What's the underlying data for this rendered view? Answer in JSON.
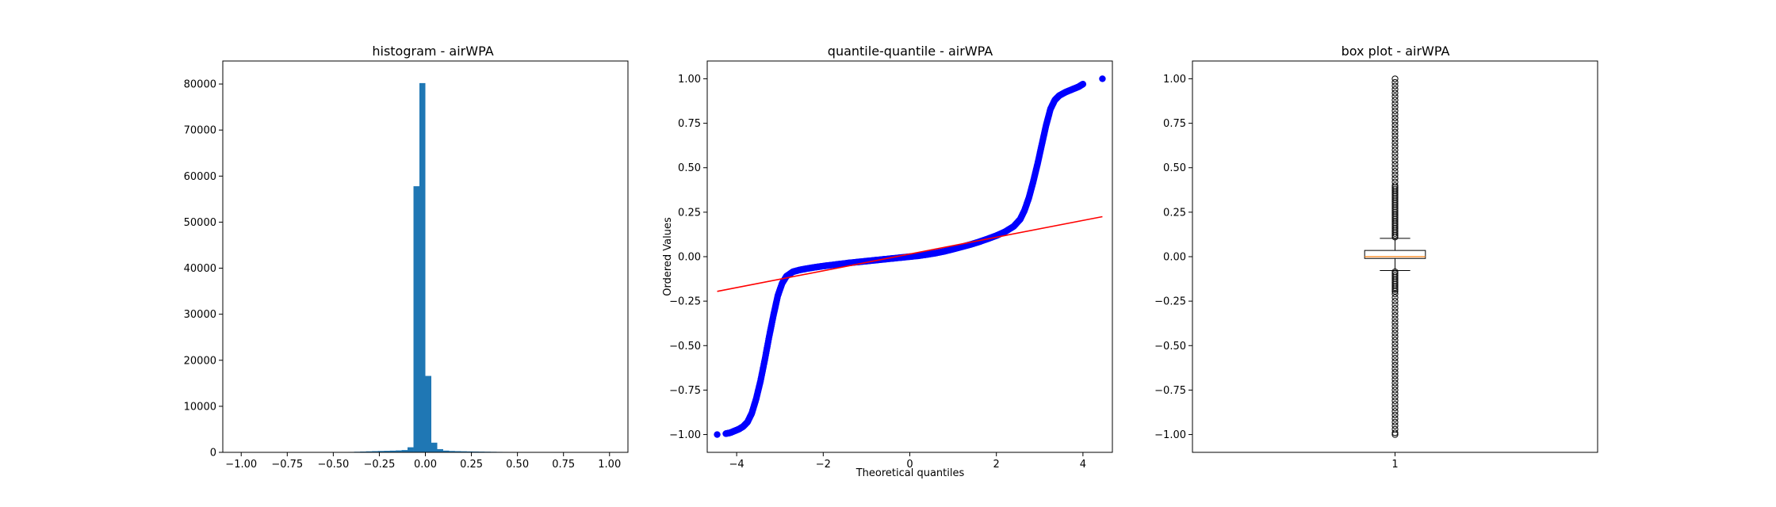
{
  "chart_data": [
    {
      "type": "bar",
      "title": "histogram - airWPA",
      "xlabel": "",
      "ylabel": "",
      "xlim": [
        -1.1,
        1.1
      ],
      "ylim": [
        0,
        85000
      ],
      "xticks": [
        -1.0,
        -0.75,
        -0.5,
        -0.25,
        0.0,
        0.25,
        0.5,
        0.75,
        1.0
      ],
      "xtick_labels": [
        "−1.00",
        "−0.75",
        "−0.50",
        "−0.25",
        "0.00",
        "0.25",
        "0.50",
        "0.75",
        "1.00"
      ],
      "yticks": [
        0,
        10000,
        20000,
        30000,
        40000,
        50000,
        60000,
        70000,
        80000
      ],
      "ytick_labels": [
        "0",
        "10000",
        "20000",
        "30000",
        "40000",
        "50000",
        "60000",
        "70000",
        "80000"
      ],
      "bin_edges": [
        -1.0,
        -0.9677,
        -0.9355,
        -0.9032,
        -0.871,
        -0.8387,
        -0.8065,
        -0.7742,
        -0.7419,
        -0.7097,
        -0.6774,
        -0.6452,
        -0.6129,
        -0.5806,
        -0.5484,
        -0.5161,
        -0.4839,
        -0.4516,
        -0.4194,
        -0.3871,
        -0.3548,
        -0.3226,
        -0.2903,
        -0.2581,
        -0.2258,
        -0.1935,
        -0.1613,
        -0.129,
        -0.0968,
        -0.0645,
        -0.0323,
        0.0,
        0.0323,
        0.0645,
        0.0968,
        0.129,
        0.1613,
        0.1935,
        0.2258,
        0.2581,
        0.2903,
        0.3226,
        0.3548,
        0.3871,
        0.4194,
        0.4516,
        0.4839,
        0.5161,
        0.5484,
        0.5806,
        0.6129,
        0.6452,
        0.6774,
        0.7097,
        0.7419,
        0.7742,
        0.8065,
        0.8387,
        0.871,
        0.9032,
        0.9355
      ],
      "values": [
        5,
        5,
        5,
        5,
        5,
        5,
        5,
        5,
        5,
        5,
        5,
        5,
        5,
        5,
        10,
        20,
        30,
        60,
        90,
        130,
        170,
        220,
        260,
        300,
        330,
        370,
        420,
        500,
        1100,
        57800,
        80200,
        16600,
        2100,
        700,
        380,
        300,
        260,
        230,
        200,
        180,
        160,
        140,
        120,
        100,
        90,
        80,
        70,
        60,
        55,
        50,
        45,
        40,
        35,
        30,
        25,
        20,
        15,
        10,
        8,
        5
      ],
      "color": "#1f77b4"
    },
    {
      "type": "scatter",
      "title": "quantile-quantile - airWPA",
      "xlabel": "Theoretical quantiles",
      "ylabel": "Ordered Values",
      "xlim": [
        -4.68,
        4.68
      ],
      "ylim": [
        -1.1,
        1.1
      ],
      "xticks": [
        -4,
        -2,
        0,
        2,
        4
      ],
      "xtick_labels": [
        "−4",
        "−2",
        "0",
        "2",
        "4"
      ],
      "yticks": [
        -1.0,
        -0.75,
        -0.5,
        -0.25,
        0.0,
        0.25,
        0.5,
        0.75,
        1.0
      ],
      "ytick_labels": [
        "−1.00",
        "−0.75",
        "−0.50",
        "−0.25",
        "0.00",
        "0.25",
        "0.50",
        "0.75",
        "1.00"
      ],
      "points": [
        [
          -4.45,
          -1.0
        ],
        [
          -4.25,
          -0.995
        ],
        [
          -4.15,
          -0.99
        ],
        [
          -4.05,
          -0.98
        ],
        [
          -3.95,
          -0.97
        ],
        [
          -3.85,
          -0.955
        ],
        [
          -3.75,
          -0.93
        ],
        [
          -3.65,
          -0.88
        ],
        [
          -3.55,
          -0.8
        ],
        [
          -3.45,
          -0.7
        ],
        [
          -3.35,
          -0.58
        ],
        [
          -3.25,
          -0.45
        ],
        [
          -3.15,
          -0.33
        ],
        [
          -3.05,
          -0.22
        ],
        [
          -2.95,
          -0.15
        ],
        [
          -2.85,
          -0.11
        ],
        [
          -2.7,
          -0.085
        ],
        [
          -2.55,
          -0.075
        ],
        [
          -2.4,
          -0.068
        ],
        [
          -2.2,
          -0.06
        ],
        [
          -2.0,
          -0.053
        ],
        [
          -1.8,
          -0.047
        ],
        [
          -1.6,
          -0.041
        ],
        [
          -1.4,
          -0.035
        ],
        [
          -1.2,
          -0.03
        ],
        [
          -1.0,
          -0.025
        ],
        [
          -0.8,
          -0.02
        ],
        [
          -0.6,
          -0.015
        ],
        [
          -0.4,
          -0.01
        ],
        [
          -0.2,
          -0.005
        ],
        [
          0.0,
          0.0
        ],
        [
          0.2,
          0.005
        ],
        [
          0.4,
          0.012
        ],
        [
          0.6,
          0.02
        ],
        [
          0.8,
          0.03
        ],
        [
          1.0,
          0.042
        ],
        [
          1.2,
          0.055
        ],
        [
          1.4,
          0.068
        ],
        [
          1.6,
          0.083
        ],
        [
          1.8,
          0.1
        ],
        [
          2.0,
          0.118
        ],
        [
          2.2,
          0.14
        ],
        [
          2.4,
          0.17
        ],
        [
          2.55,
          0.21
        ],
        [
          2.65,
          0.26
        ],
        [
          2.75,
          0.33
        ],
        [
          2.85,
          0.42
        ],
        [
          2.95,
          0.52
        ],
        [
          3.05,
          0.63
        ],
        [
          3.15,
          0.74
        ],
        [
          3.25,
          0.83
        ],
        [
          3.35,
          0.88
        ],
        [
          3.45,
          0.905
        ],
        [
          3.6,
          0.925
        ],
        [
          3.75,
          0.94
        ],
        [
          3.9,
          0.955
        ],
        [
          4.0,
          0.97
        ],
        [
          4.45,
          1.0
        ]
      ],
      "fit_line": [
        [
          -4.45,
          -0.195
        ],
        [
          4.45,
          0.225
        ]
      ],
      "marker_color": "#0000ff",
      "line_color": "#ff0000"
    },
    {
      "type": "box",
      "title": "box plot - airWPA",
      "xlabel": "",
      "ylabel": "",
      "xlim": [
        0.5,
        1.5
      ],
      "ylim": [
        -1.1,
        1.1
      ],
      "categories": [
        "1"
      ],
      "yticks": [
        -1.0,
        -0.75,
        -0.5,
        -0.25,
        0.0,
        0.25,
        0.5,
        0.75,
        1.0
      ],
      "ytick_labels": [
        "−1.00",
        "−0.75",
        "−0.50",
        "−0.25",
        "0.00",
        "0.25",
        "0.50",
        "0.75",
        "1.00"
      ],
      "q1": -0.01,
      "median": 0.0,
      "q3": 0.035,
      "whisker_low": -0.078,
      "whisker_high": 0.103,
      "outliers_high": [
        0.11,
        0.12,
        0.13,
        0.14,
        0.15,
        0.16,
        0.17,
        0.18,
        0.19,
        0.2,
        0.21,
        0.22,
        0.23,
        0.24,
        0.25,
        0.26,
        0.27,
        0.28,
        0.29,
        0.3,
        0.31,
        0.32,
        0.33,
        0.34,
        0.35,
        0.36,
        0.37,
        0.38,
        0.39,
        0.4,
        0.42,
        0.44,
        0.46,
        0.48,
        0.5,
        0.52,
        0.54,
        0.56,
        0.58,
        0.6,
        0.62,
        0.64,
        0.66,
        0.68,
        0.7,
        0.72,
        0.74,
        0.76,
        0.78,
        0.8,
        0.82,
        0.84,
        0.86,
        0.88,
        0.9,
        0.92,
        0.94,
        0.96,
        0.98,
        1.0
      ],
      "outliers_low": [
        -0.085,
        -0.095,
        -0.105,
        -0.115,
        -0.125,
        -0.135,
        -0.145,
        -0.155,
        -0.165,
        -0.175,
        -0.185,
        -0.195,
        -0.21,
        -0.23,
        -0.25,
        -0.27,
        -0.29,
        -0.31,
        -0.33,
        -0.35,
        -0.37,
        -0.39,
        -0.41,
        -0.43,
        -0.45,
        -0.47,
        -0.49,
        -0.51,
        -0.53,
        -0.55,
        -0.57,
        -0.59,
        -0.61,
        -0.63,
        -0.65,
        -0.67,
        -0.69,
        -0.71,
        -0.73,
        -0.75,
        -0.77,
        -0.79,
        -0.81,
        -0.83,
        -0.85,
        -0.87,
        -0.89,
        -0.91,
        -0.93,
        -0.95,
        -0.97,
        -0.99,
        -1.0
      ],
      "box_color": "#000000",
      "median_color": "#ff7f0e"
    }
  ]
}
